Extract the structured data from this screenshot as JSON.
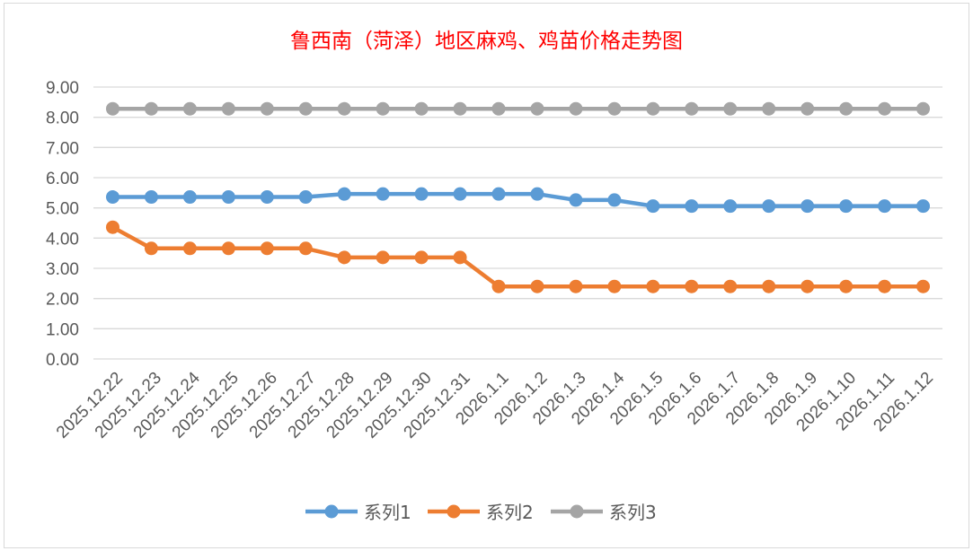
{
  "chart_data": {
    "type": "line",
    "title": "鲁西南（菏泽）地区麻鸡、鸡苗价格走势图",
    "xlabel": "",
    "ylabel": "",
    "ylim": [
      0,
      9
    ],
    "yticks": [
      "0.00",
      "1.00",
      "2.00",
      "3.00",
      "4.00",
      "5.00",
      "6.00",
      "7.00",
      "8.00",
      "9.00"
    ],
    "grid": true,
    "legend": "bottom",
    "categories": [
      "2025.12.22",
      "2025.12.23",
      "2025.12.24",
      "2025.12.25",
      "2025.12.26",
      "2025.12.27",
      "2025.12.28",
      "2025.12.29",
      "2025.12.30",
      "2025.12.31",
      "2026.1.1",
      "2026.1.2",
      "2026.1.3",
      "2026.1.4",
      "2026.1.5",
      "2026.1.6",
      "2026.1.7",
      "2026.1.8",
      "2026.1.9",
      "2026.1.10",
      "2026.1.11",
      "2026.1.12"
    ],
    "series": [
      {
        "name": "系列1",
        "color": "#5b9bd5",
        "values": [
          5.36,
          5.36,
          5.36,
          5.36,
          5.36,
          5.36,
          5.46,
          5.46,
          5.46,
          5.46,
          5.46,
          5.46,
          5.26,
          5.26,
          5.06,
          5.06,
          5.06,
          5.06,
          5.06,
          5.06,
          5.06,
          5.06
        ]
      },
      {
        "name": "系列2",
        "color": "#ed7d31",
        "values": [
          4.36,
          3.66,
          3.66,
          3.66,
          3.66,
          3.66,
          3.36,
          3.36,
          3.36,
          3.36,
          2.4,
          2.4,
          2.4,
          2.4,
          2.4,
          2.4,
          2.4,
          2.4,
          2.4,
          2.4,
          2.4,
          2.4
        ]
      },
      {
        "name": "系列3",
        "color": "#a5a5a5",
        "values": [
          8.28,
          8.28,
          8.28,
          8.28,
          8.28,
          8.28,
          8.28,
          8.28,
          8.28,
          8.28,
          8.28,
          8.28,
          8.28,
          8.28,
          8.28,
          8.28,
          8.28,
          8.28,
          8.28,
          8.28,
          8.28,
          8.28
        ]
      }
    ]
  }
}
